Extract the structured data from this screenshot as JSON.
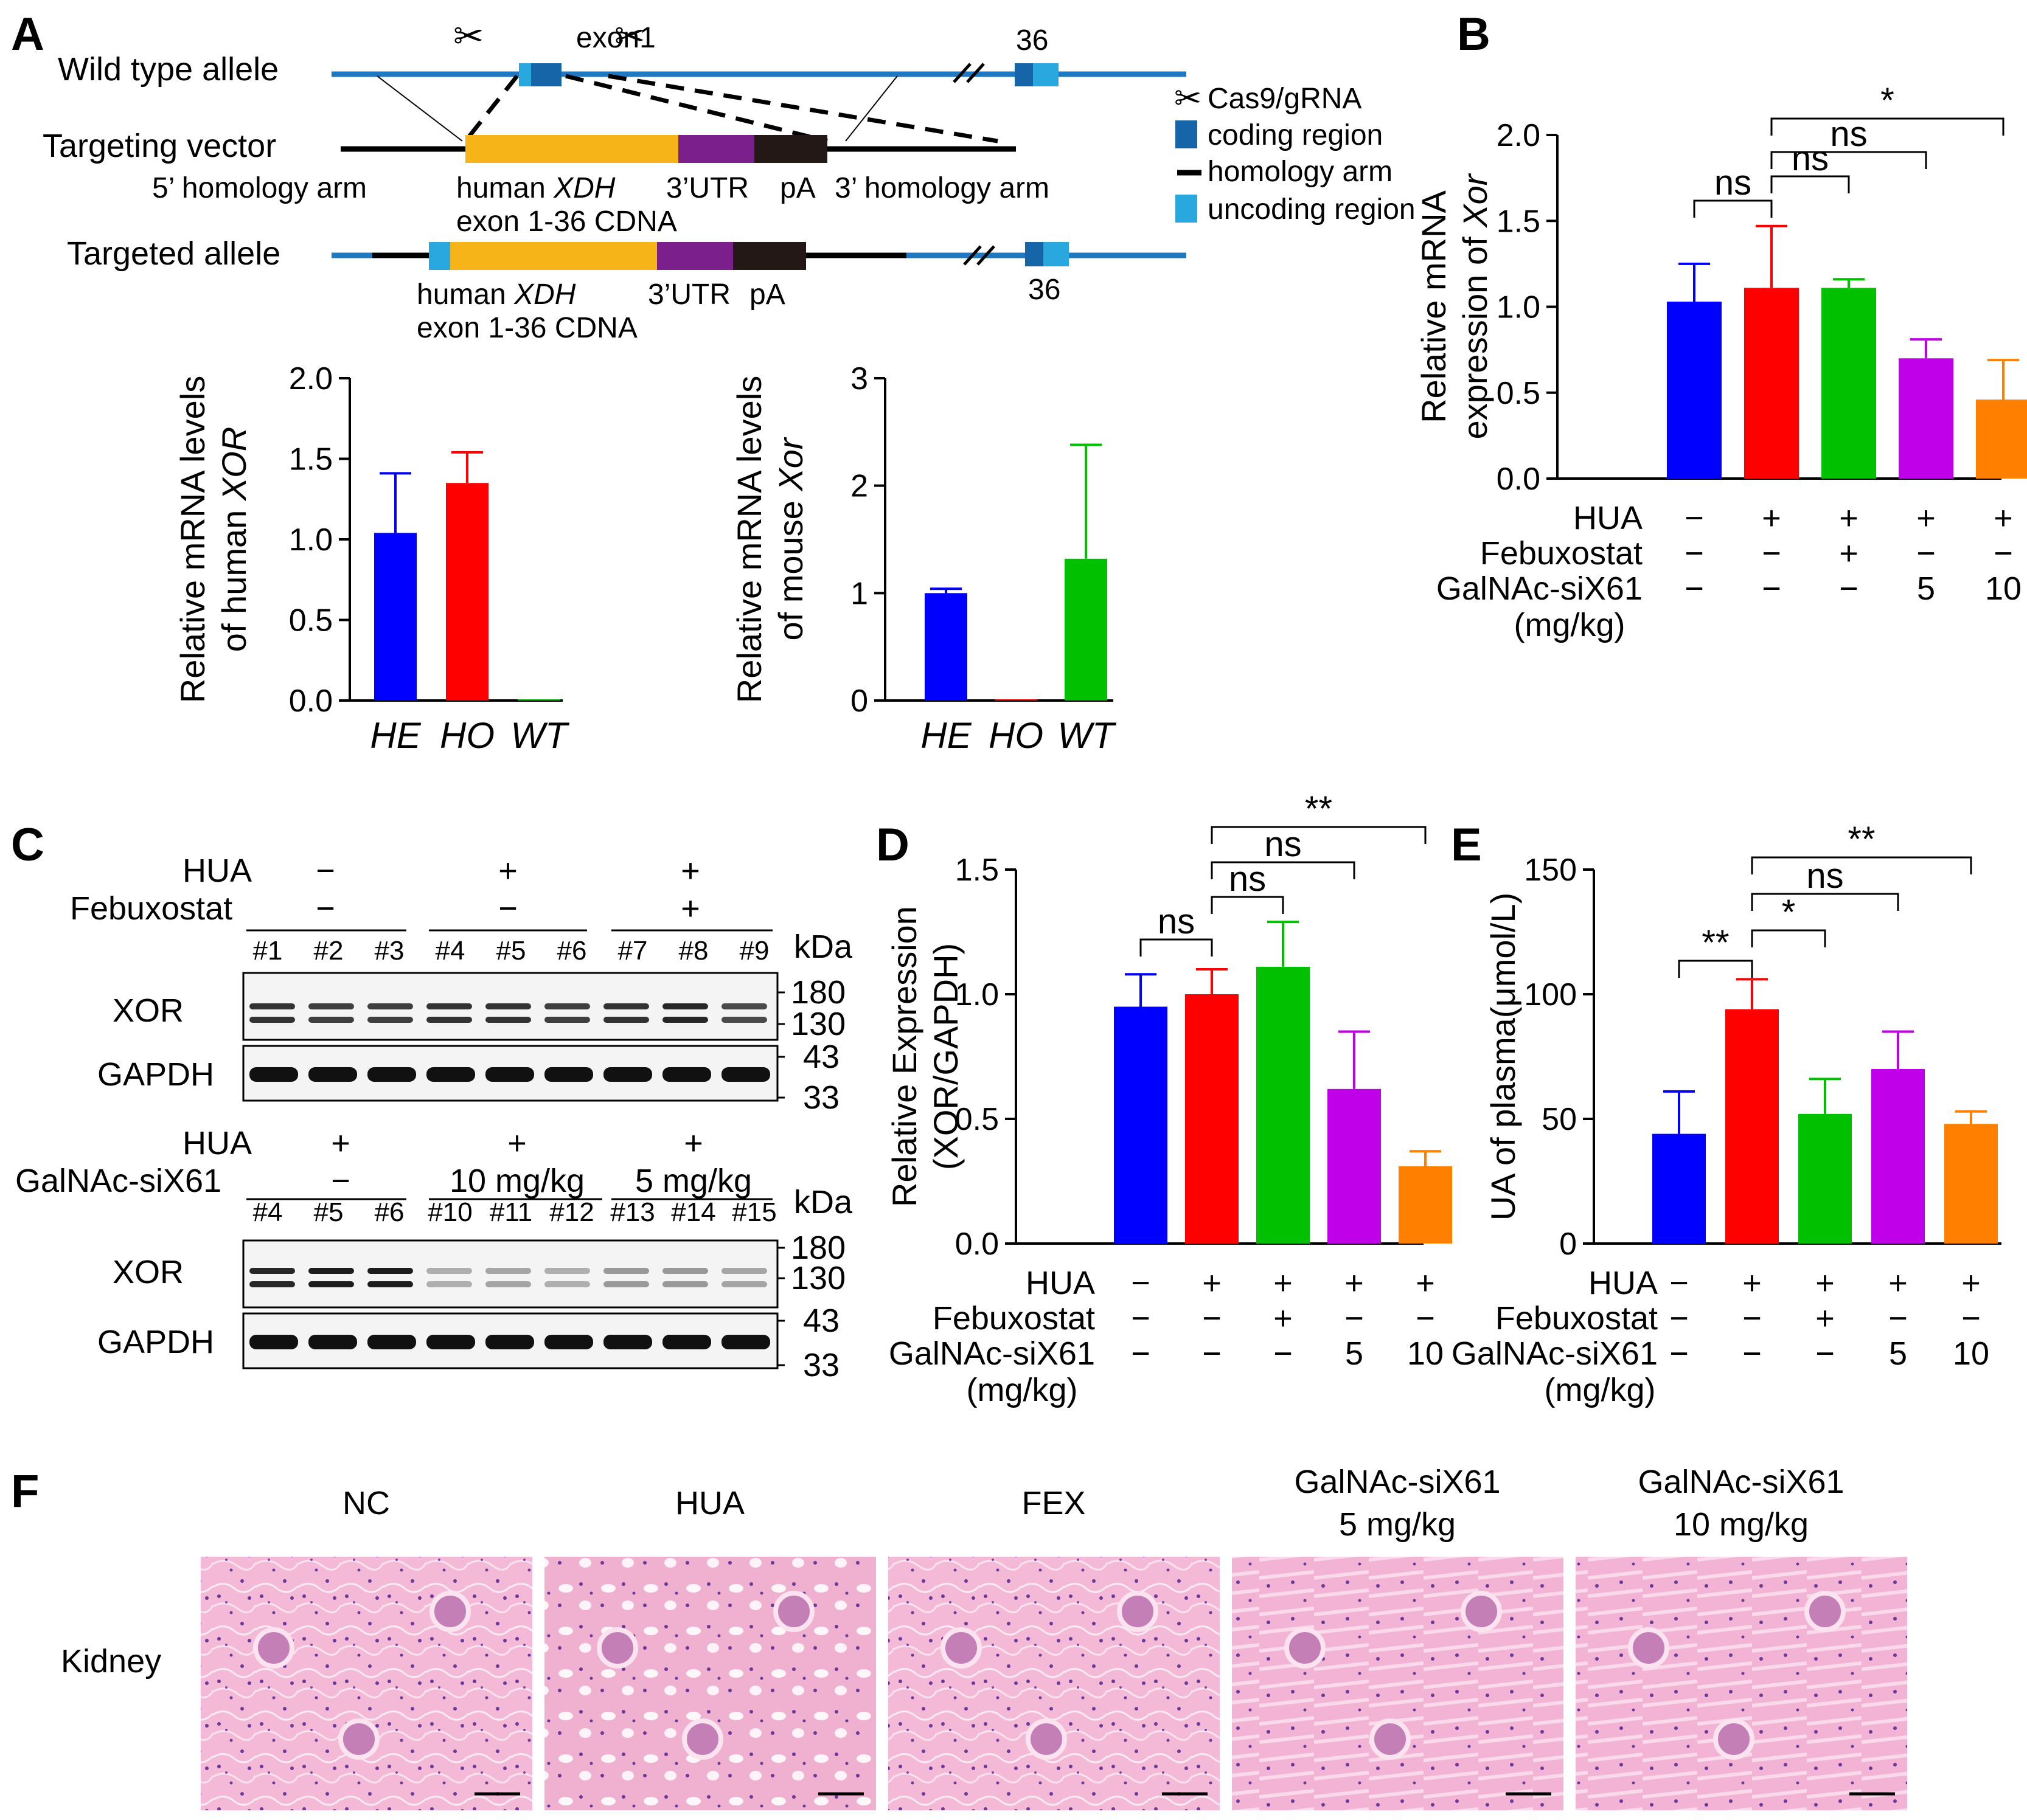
{
  "panel_labels": {
    "A": "A",
    "B": "B",
    "C": "C",
    "D": "D",
    "E": "E",
    "F": "F"
  },
  "panelA": {
    "wild_type": "Wild type allele",
    "exon1": "exon1",
    "exon36": "36",
    "targeting_vector": "Targeting vector",
    "homology5": "5’ homology arm",
    "homology3": "3’ homology arm",
    "human_xdh": "human",
    "xdh_italic": "XDH",
    "cdna": "exon 1-36 CDNA",
    "utr": "3’UTR",
    "pa": "pA",
    "targeted_allele": "Targeted allele",
    "legend": {
      "cas9": "Cas9/gRNA",
      "coding": "coding region",
      "arm": "homology arm",
      "uncoding": "uncoding region"
    },
    "colors": {
      "line": "#1e78c2",
      "coding": "#1565a8",
      "uncoding": "#29a8e0",
      "cdna": "#f7b418",
      "utr": "#7a1f8c",
      "pa": "#231815"
    }
  },
  "chart_data": [
    {
      "id": "A1",
      "type": "bar",
      "categories": [
        "HE",
        "HO",
        "WT"
      ],
      "values": [
        1.04,
        1.35,
        0.0
      ],
      "errors": [
        0.37,
        0.19,
        0.0
      ],
      "colors": [
        "#0000ff",
        "#ff0000",
        "#00c000"
      ],
      "ylabel_line1": "Relative mRNA levels",
      "ylabel_line2_prefix": "of human ",
      "ylabel_line2_italic": "XOR",
      "ylim": [
        0,
        2.0
      ],
      "yticks": [
        "0.0",
        "0.5",
        "1.0",
        "1.5",
        "2.0"
      ]
    },
    {
      "id": "A2",
      "type": "bar",
      "categories": [
        "HE",
        "HO",
        "WT"
      ],
      "values": [
        1.0,
        0.01,
        1.32
      ],
      "errors": [
        0.04,
        0.0,
        1.06
      ],
      "colors": [
        "#0000ff",
        "#ff0000",
        "#00c000"
      ],
      "ylabel_line1": "Relative mRNA levels",
      "ylabel_line2_prefix": "of mouse ",
      "ylabel_line2_italic": "Xor",
      "ylim": [
        0,
        3
      ],
      "yticks": [
        "0",
        "1",
        "2",
        "3"
      ]
    },
    {
      "id": "B",
      "type": "bar",
      "values": [
        1.03,
        1.11,
        1.11,
        0.7,
        0.46
      ],
      "errors": [
        0.22,
        0.36,
        0.05,
        0.11,
        0.23
      ],
      "colors": [
        "#0000ff",
        "#ff0000",
        "#00c000",
        "#c000e8",
        "#ff8000"
      ],
      "ylabel_line1": "Relative mRNA",
      "ylabel_line2_prefix": "expression of ",
      "ylabel_line2_italic": "Xor",
      "ylim": [
        0,
        2.0
      ],
      "yticks": [
        "0.0",
        "0.5",
        "1.0",
        "1.5",
        "2.0"
      ],
      "sig": [
        "ns",
        "ns",
        "ns",
        "*"
      ]
    },
    {
      "id": "D",
      "type": "bar",
      "values": [
        0.95,
        1.0,
        1.11,
        0.62,
        0.31
      ],
      "errors": [
        0.13,
        0.1,
        0.18,
        0.23,
        0.06
      ],
      "colors": [
        "#0000ff",
        "#ff0000",
        "#00c000",
        "#c000e8",
        "#ff8000"
      ],
      "ylabel_line1": "Relative Expression",
      "ylabel_line2": "(XOR/GAPDH)",
      "ylim": [
        0,
        1.5
      ],
      "yticks": [
        "0.0",
        "0.5",
        "1.0",
        "1.5"
      ],
      "sig": [
        "ns",
        "ns",
        "ns",
        "**"
      ]
    },
    {
      "id": "E",
      "type": "bar",
      "values": [
        44,
        94,
        52,
        70,
        48
      ],
      "errors": [
        17,
        12,
        14,
        15,
        5
      ],
      "colors": [
        "#0000ff",
        "#ff0000",
        "#00c000",
        "#c000e8",
        "#ff8000"
      ],
      "ylabel_line1": "UA of plasma(μmol/L)",
      "ylim": [
        0,
        150
      ],
      "yticks": [
        "0",
        "50",
        "100",
        "150"
      ],
      "sig": [
        "**",
        "*",
        "ns",
        "**"
      ]
    }
  ],
  "treatment_table": {
    "rows": [
      "HUA",
      "Febuxostat",
      "GalNAc-siX61"
    ],
    "unit": "(mg/kg)",
    "HUA": [
      "−",
      "+",
      "+",
      "+",
      "+"
    ],
    "Febuxostat": [
      "−",
      "−",
      "+",
      "−",
      "−"
    ],
    "GalNAc": [
      "−",
      "−",
      "−",
      "5",
      "10"
    ]
  },
  "panelC": {
    "top": {
      "hua_label": "HUA",
      "feb_label": "Febuxostat",
      "hua": [
        "−",
        "+",
        "+"
      ],
      "feb": [
        "−",
        "−",
        "+"
      ],
      "lanes": [
        "#1",
        "#2",
        "#3",
        "#4",
        "#5",
        "#6",
        "#7",
        "#8",
        "#9"
      ]
    },
    "bottom": {
      "hua_label": "HUA",
      "gal_label": "GalNAc-siX61",
      "hua": [
        "+",
        "+",
        "+"
      ],
      "gal": [
        "−",
        "10 mg/kg",
        "5 mg/kg"
      ],
      "lanes": [
        "#4",
        "#5",
        "#6",
        "#10",
        "#11",
        "#12",
        "#13",
        "#14",
        "#15"
      ]
    },
    "kda": "kDa",
    "xor": "XOR",
    "gapdh": "GAPDH",
    "m180": "180",
    "m130": "130",
    "m43": "43",
    "m33": "33"
  },
  "panelF": {
    "headers": [
      "NC",
      "HUA",
      "FEX",
      "GalNAc-siX61",
      "GalNAc-siX61"
    ],
    "subheaders": [
      "",
      "",
      "",
      "5 mg/kg",
      "10 mg/kg"
    ],
    "row_label": "Kidney"
  }
}
